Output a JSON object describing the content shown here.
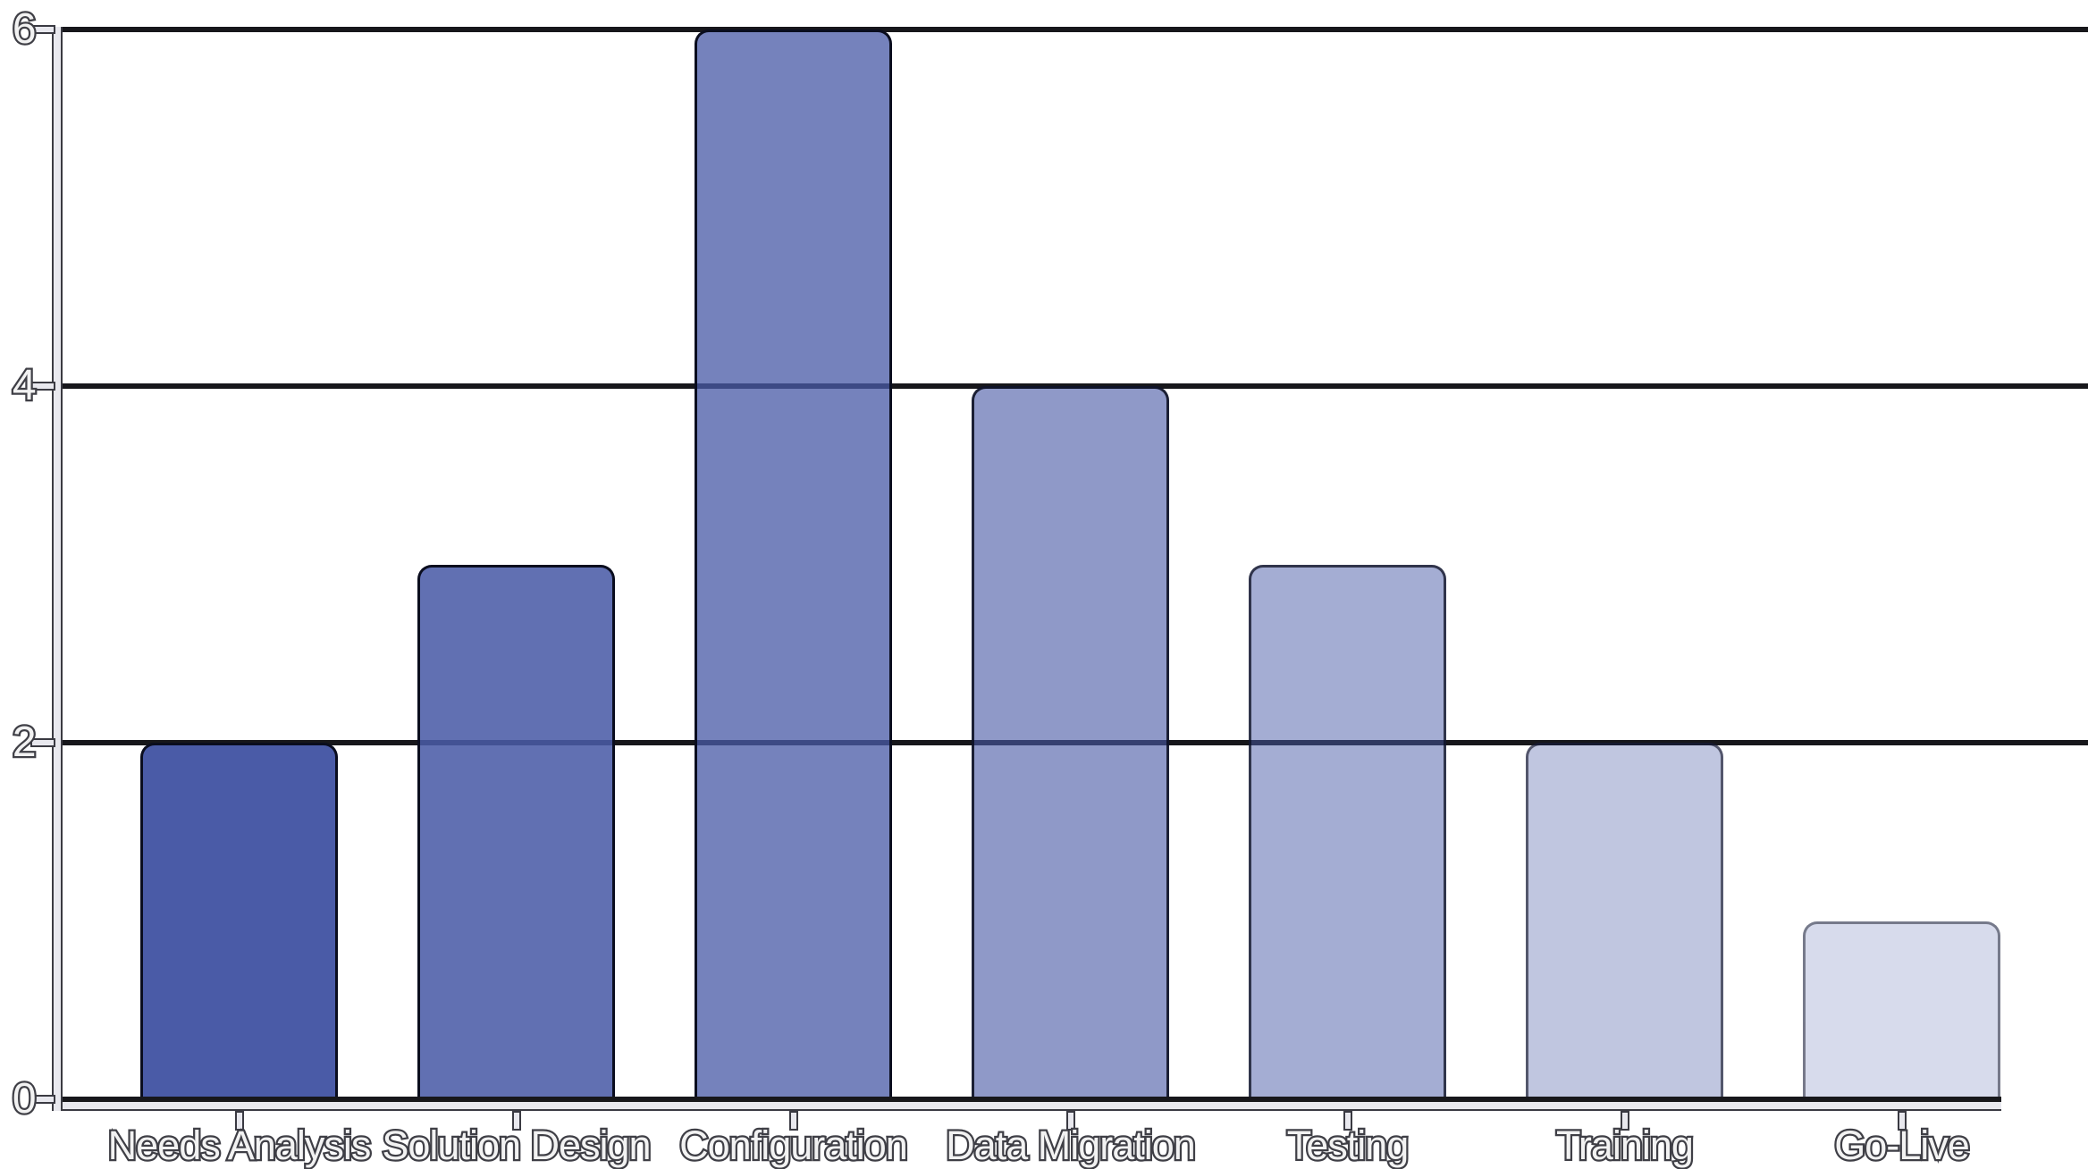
{
  "chart_data": {
    "type": "bar",
    "title": "",
    "categories": [
      "Needs Analysis",
      "Solution Design",
      "Configuration",
      "Data Migration",
      "Testing",
      "Training",
      "Go-Live"
    ],
    "values": [
      2,
      3,
      6,
      4,
      3,
      2,
      1
    ],
    "xlabel": "",
    "ylabel": "",
    "ylim": [
      0,
      6
    ],
    "yticks": [
      0,
      2,
      4,
      6
    ],
    "ytick_labels": [
      "0",
      "2",
      "4",
      "6"
    ],
    "grid": "horizontal",
    "legend": "none",
    "bar_base_color": "#4a5ba7",
    "bar_opacities": [
      1.0,
      0.87,
      0.76,
      0.62,
      0.5,
      0.35,
      0.22
    ],
    "bar_colors": [
      "#4a5ba7",
      "#6271b6",
      "#7684c3",
      "#8d9acd",
      "#a6aedb",
      "#c0c5e3",
      "#d7daee"
    ],
    "bar_border_base_color": "#0a0d1e",
    "gridline_color": "#17171b",
    "axis_color": "#e8e8ee",
    "axis_outline_color": "#3a3a42",
    "label_fill_color": "#f2f2f2",
    "label_outline_color": "#3f3f46"
  }
}
